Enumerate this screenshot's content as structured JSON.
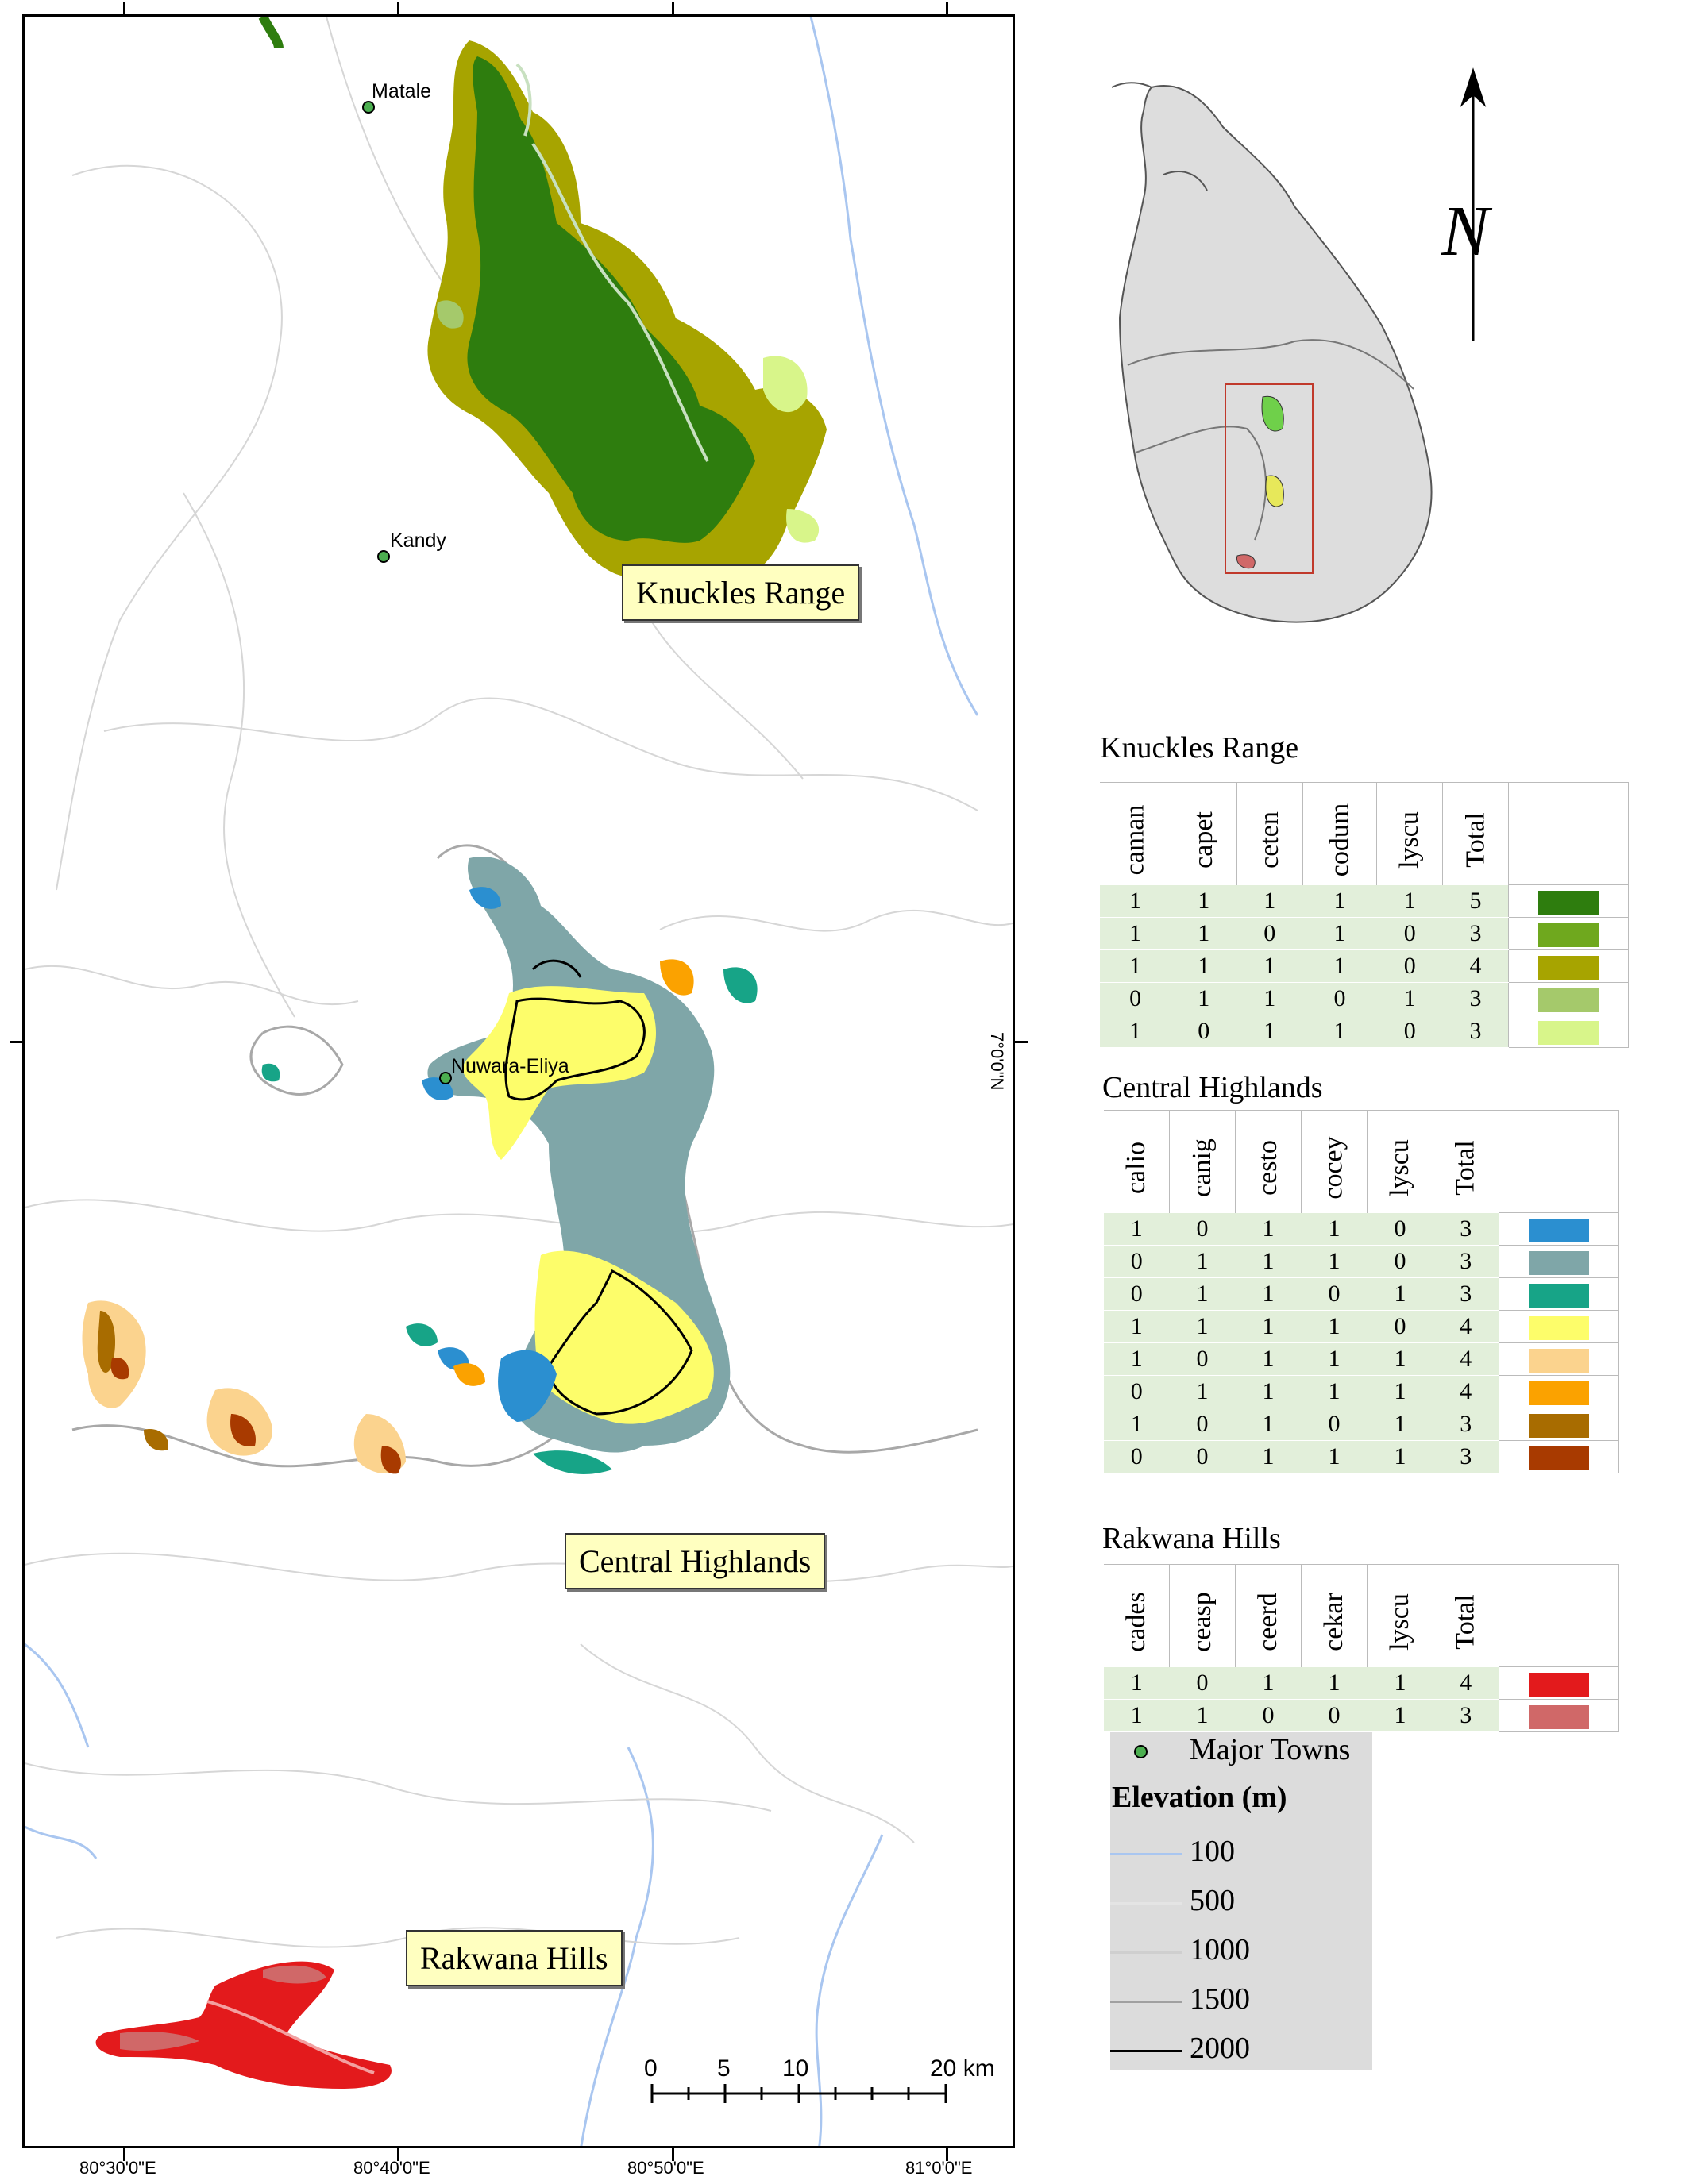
{
  "map": {
    "towns": [
      {
        "name": "Matale"
      },
      {
        "name": "Kandy"
      },
      {
        "name": "Nuwara-Eliya"
      }
    ],
    "region_labels": [
      "Knuckles Range",
      "Central Highlands",
      "Rakwana Hills"
    ],
    "longitude_ticks": [
      "80°30'0\"E",
      "80°40'0\"E",
      "80°50'0\"E",
      "81°0'0\"E"
    ],
    "latitude_tick": "7°0'0\"N",
    "scale_bar": {
      "labels": [
        "0",
        "5",
        "10",
        "20 km"
      ]
    },
    "colors": {
      "contour": "#c8c8c8",
      "water": "#a9c6f0",
      "label_bg": "#ffffc0"
    }
  },
  "inset": {
    "north_label": "N",
    "description_colors": {
      "island": "#dddddd",
      "study_box": "#c0392b"
    }
  },
  "legend": {
    "knuckles": {
      "title": "Knuckles Range",
      "columns": [
        "caman",
        "capet",
        "ceten",
        "codum",
        "lyscu",
        "Total"
      ],
      "rows": [
        {
          "values": [
            "1",
            "1",
            "1",
            "1",
            "1",
            "5"
          ],
          "color": "#2e7d0e"
        },
        {
          "values": [
            "1",
            "1",
            "0",
            "1",
            "0",
            "3"
          ],
          "color": "#6fa81e"
        },
        {
          "values": [
            "1",
            "1",
            "1",
            "1",
            "0",
            "4"
          ],
          "color": "#a7a400"
        },
        {
          "values": [
            "0",
            "1",
            "1",
            "0",
            "1",
            "3"
          ],
          "color": "#a5c96b"
        },
        {
          "values": [
            "1",
            "0",
            "1",
            "1",
            "0",
            "3"
          ],
          "color": "#d8f58a"
        }
      ]
    },
    "central": {
      "title": "Central Highlands",
      "columns": [
        "calio",
        "canig",
        "cesto",
        "cocey",
        "lyscu",
        "Total"
      ],
      "rows": [
        {
          "values": [
            "1",
            "0",
            "1",
            "1",
            "0",
            "3"
          ],
          "color": "#2b8fd0"
        },
        {
          "values": [
            "0",
            "1",
            "1",
            "1",
            "0",
            "3"
          ],
          "color": "#7fa6a8"
        },
        {
          "values": [
            "0",
            "1",
            "1",
            "0",
            "1",
            "3"
          ],
          "color": "#17a487"
        },
        {
          "values": [
            "1",
            "1",
            "1",
            "1",
            "0",
            "4"
          ],
          "color": "#fdfd6a"
        },
        {
          "values": [
            "1",
            "0",
            "1",
            "1",
            "1",
            "4"
          ],
          "color": "#fbd38e"
        },
        {
          "values": [
            "0",
            "1",
            "1",
            "1",
            "1",
            "4"
          ],
          "color": "#fba200"
        },
        {
          "values": [
            "1",
            "0",
            "1",
            "0",
            "1",
            "3"
          ],
          "color": "#a86c00"
        },
        {
          "values": [
            "0",
            "0",
            "1",
            "1",
            "1",
            "3"
          ],
          "color": "#a83a00"
        }
      ]
    },
    "rakwana": {
      "title": "Rakwana Hills",
      "columns": [
        "cades",
        "ceasp",
        "ceerd",
        "cekar",
        "lyscu",
        "Total"
      ],
      "rows": [
        {
          "values": [
            "1",
            "0",
            "1",
            "1",
            "1",
            "4"
          ],
          "color": "#e31a1c"
        },
        {
          "values": [
            "1",
            "1",
            "0",
            "0",
            "1",
            "3"
          ],
          "color": "#d06868"
        }
      ]
    },
    "towns_label": "Major Towns",
    "elevation": {
      "title": "Elevation (m)",
      "levels": [
        {
          "label": "100",
          "color": "#a9c6f0"
        },
        {
          "label": "500",
          "color": "#e4e4e4"
        },
        {
          "label": "1000",
          "color": "#cfcfcf"
        },
        {
          "label": "1500",
          "color": "#a0a0a0"
        },
        {
          "label": "2000",
          "color": "#000000"
        }
      ]
    }
  }
}
